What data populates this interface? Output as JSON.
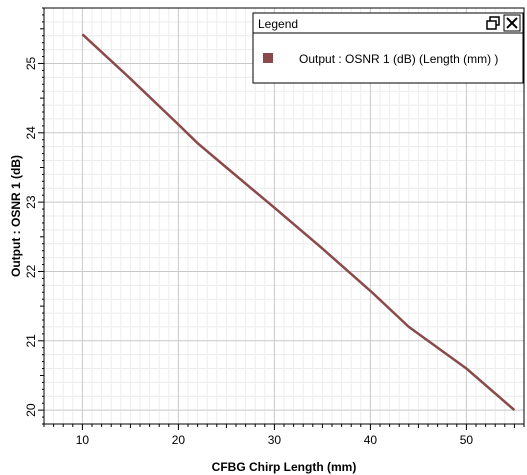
{
  "chart_data": {
    "type": "line",
    "xlabel": "CFBG Chirp Length (mm)",
    "ylabel": "Output : OSNR 1 (dB)",
    "xlim": [
      6,
      56
    ],
    "ylim": [
      19.8,
      25.8
    ],
    "x_ticks": [
      "10",
      "20",
      "30",
      "40",
      "50"
    ],
    "y_ticks": [
      "20",
      "21",
      "22",
      "23",
      "24",
      "25"
    ],
    "x_tick_values": [
      10,
      20,
      30,
      40,
      50
    ],
    "y_tick_values": [
      20,
      21,
      22,
      23,
      24,
      25
    ],
    "grid": true,
    "legend_position": "top-right",
    "series": [
      {
        "name": "Output : OSNR 1 (dB) (Length (mm) )",
        "color": "#8b4a4a",
        "x": [
          10,
          15,
          20,
          22,
          25,
          30,
          35,
          40,
          44,
          50,
          55
        ],
        "y": [
          25.42,
          24.78,
          24.12,
          23.85,
          23.5,
          22.92,
          22.33,
          21.72,
          21.2,
          20.6,
          20.0
        ]
      }
    ]
  },
  "legend": {
    "title": "Legend",
    "restore_icon": "restore-window-icon",
    "close_icon": "close-icon"
  }
}
